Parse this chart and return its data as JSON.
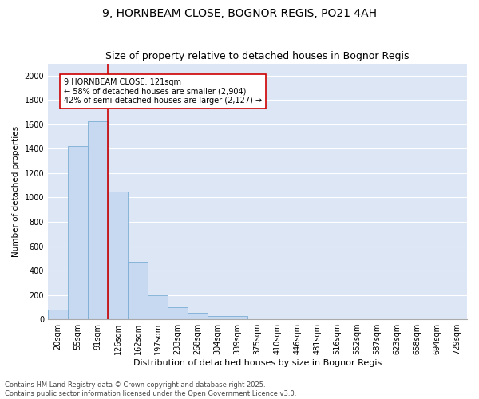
{
  "title1": "9, HORNBEAM CLOSE, BOGNOR REGIS, PO21 4AH",
  "title2": "Size of property relative to detached houses in Bognor Regis",
  "xlabel": "Distribution of detached houses by size in Bognor Regis",
  "ylabel": "Number of detached properties",
  "categories": [
    "20sqm",
    "55sqm",
    "91sqm",
    "126sqm",
    "162sqm",
    "197sqm",
    "233sqm",
    "268sqm",
    "304sqm",
    "339sqm",
    "375sqm",
    "410sqm",
    "446sqm",
    "481sqm",
    "516sqm",
    "552sqm",
    "587sqm",
    "623sqm",
    "658sqm",
    "694sqm",
    "729sqm"
  ],
  "values": [
    80,
    1420,
    1625,
    1050,
    470,
    200,
    100,
    50,
    30,
    30,
    0,
    0,
    0,
    0,
    0,
    0,
    0,
    0,
    0,
    0,
    0
  ],
  "bar_color": "#c7d9f0",
  "bar_edge_color": "#7aadd4",
  "vline_color": "#cc0000",
  "annotation_text_line1": "9 HORNBEAM CLOSE: 121sqm",
  "annotation_text_line2": "← 58% of detached houses are smaller (2,904)",
  "annotation_text_line3": "42% of semi-detached houses are larger (2,127) →",
  "ylim": [
    0,
    2100
  ],
  "yticks": [
    0,
    200,
    400,
    600,
    800,
    1000,
    1200,
    1400,
    1600,
    1800,
    2000
  ],
  "background_color": "#dce6f5",
  "grid_color": "#ffffff",
  "footer_text": "Contains HM Land Registry data © Crown copyright and database right 2025.\nContains public sector information licensed under the Open Government Licence v3.0.",
  "title1_fontsize": 10,
  "title2_fontsize": 9,
  "annotation_fontsize": 7,
  "xlabel_fontsize": 8,
  "ylabel_fontsize": 7.5,
  "tick_fontsize": 7,
  "footer_fontsize": 6
}
